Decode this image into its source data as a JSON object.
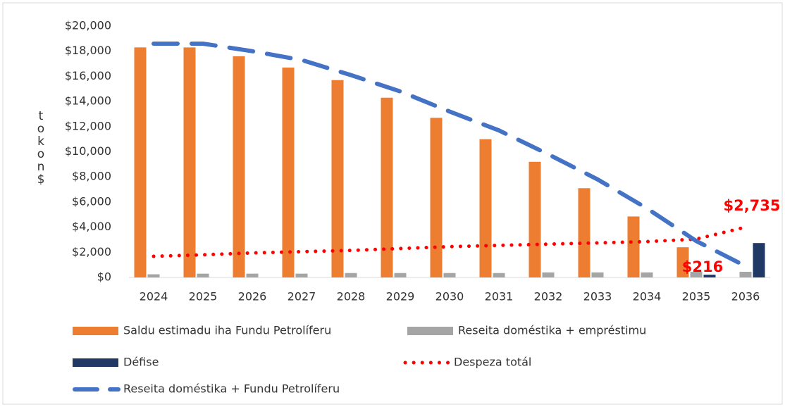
{
  "chart_data": {
    "type": "bar",
    "y_label": "tokon$",
    "categories": [
      "2024",
      "2025",
      "2026",
      "2027",
      "2028",
      "2029",
      "2030",
      "2031",
      "2032",
      "2033",
      "2034",
      "2035",
      "2036"
    ],
    "series": [
      {
        "name": "Saldu estimadu iha Fundu Petrolíferu",
        "type": "bar",
        "color": "#ed7d31",
        "values": [
          18300,
          18300,
          17600,
          16700,
          15700,
          14300,
          12700,
          11000,
          9200,
          7100,
          4850,
          2400,
          null
        ]
      },
      {
        "name": "Reseita doméstika + empréstimu",
        "type": "bar",
        "color": "#a5a5a5",
        "values": [
          250,
          300,
          300,
          300,
          350,
          350,
          350,
          350,
          400,
          400,
          400,
          450,
          450
        ]
      },
      {
        "name": "Défise",
        "type": "bar",
        "color": "#1f3864",
        "values": [
          null,
          null,
          null,
          null,
          null,
          null,
          null,
          null,
          null,
          null,
          null,
          216,
          2735
        ],
        "value_labels": [
          null,
          null,
          null,
          null,
          null,
          null,
          null,
          null,
          null,
          null,
          null,
          "$216",
          "$2,735"
        ],
        "label_color": "#ff0000"
      },
      {
        "name": "Despeza totál",
        "type": "line",
        "style": "dotted",
        "color": "#ff0000",
        "values": [
          1680,
          1800,
          1950,
          2050,
          2150,
          2300,
          2450,
          2550,
          2650,
          2750,
          2850,
          3050,
          4000
        ]
      },
      {
        "name": "Reseita doméstika + Fundu Petrolíferu",
        "type": "line",
        "style": "dashed",
        "color": "#4472c4",
        "values": [
          18600,
          18600,
          18000,
          17300,
          16100,
          14800,
          13200,
          11700,
          9800,
          7800,
          5500,
          2900,
          900
        ]
      }
    ],
    "ylim": [
      0,
      20000
    ],
    "yticks": [
      {
        "value": 0,
        "label": "$0"
      },
      {
        "value": 2000,
        "label": "$2,000"
      },
      {
        "value": 4000,
        "label": "$4,000"
      },
      {
        "value": 6000,
        "label": "$6,000"
      },
      {
        "value": 8000,
        "label": "$8,000"
      },
      {
        "value": 10000,
        "label": "$10,000"
      },
      {
        "value": 12000,
        "label": "$12,000"
      },
      {
        "value": 14000,
        "label": "$14,000"
      },
      {
        "value": 16000,
        "label": "$16,000"
      },
      {
        "value": 18000,
        "label": "$18,000"
      },
      {
        "value": 20000,
        "label": "$20,000"
      }
    ],
    "grid": false,
    "legend": "bottom"
  }
}
